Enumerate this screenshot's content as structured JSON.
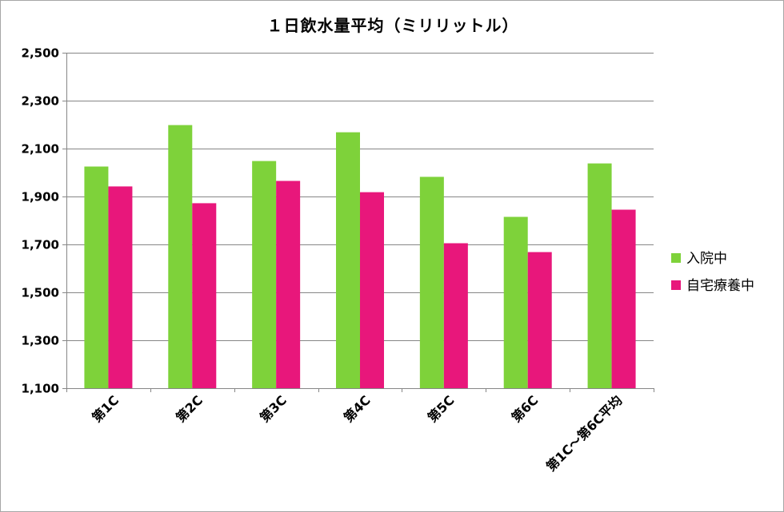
{
  "chart_data": {
    "type": "bar",
    "title": "１日飲水量平均（ミリリットル）",
    "xlabel": "",
    "ylabel": "",
    "categories": [
      "第1C",
      "第2C",
      "第3C",
      "第4C",
      "第5C",
      "第6C",
      "第1C～第6C平均"
    ],
    "series": [
      {
        "name": "入院中",
        "color": "#7ed23a",
        "values": [
          2025,
          2198,
          2048,
          2168,
          1982,
          1815,
          2038
        ]
      },
      {
        "name": "自宅療養中",
        "color": "#e8177b",
        "values": [
          1942,
          1872,
          1965,
          1918,
          1705,
          1668,
          1845
        ]
      }
    ],
    "ylim": [
      1100,
      2500
    ],
    "yticks": [
      1100,
      1300,
      1500,
      1700,
      1900,
      2100,
      2300,
      2500
    ],
    "ytick_labels": [
      "1,100",
      "1,300",
      "1,500",
      "1,700",
      "1,900",
      "2,100",
      "2,300",
      "2,500"
    ],
    "grid": true,
    "legend": "right"
  }
}
